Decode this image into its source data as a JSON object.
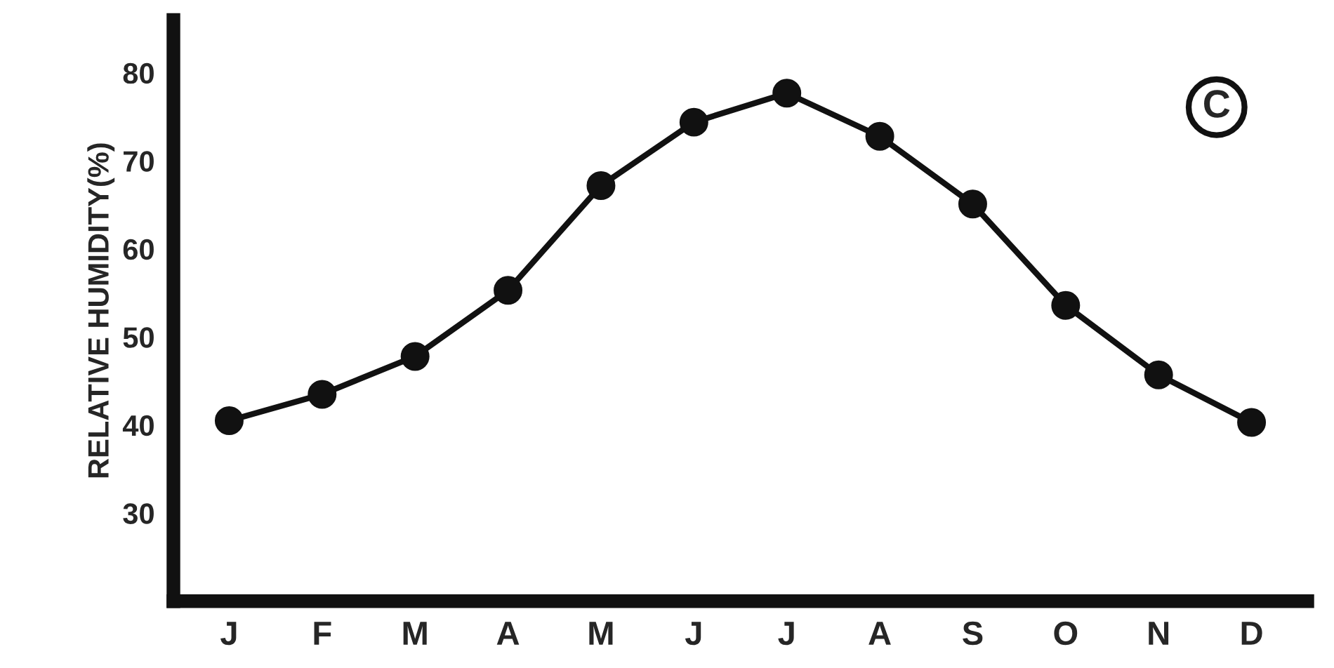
{
  "chart_data": {
    "type": "line",
    "categories": [
      "J",
      "F",
      "M",
      "A",
      "M",
      "J",
      "J",
      "A",
      "S",
      "O",
      "N",
      "D"
    ],
    "values": [
      40.5,
      43.5,
      47.8,
      55.3,
      67.2,
      74.4,
      77.7,
      72.8,
      65.1,
      53.6,
      45.7,
      40.3
    ],
    "color": "#111111",
    "marker": "circle",
    "line_style": "solid",
    "ylabel": "RELATIVE HUMIDITY(%)",
    "ylim": [
      20,
      86
    ],
    "yticks": [
      30,
      40,
      50,
      60,
      70,
      80
    ],
    "annotations": [
      "C"
    ],
    "grid": false,
    "legend": false
  }
}
